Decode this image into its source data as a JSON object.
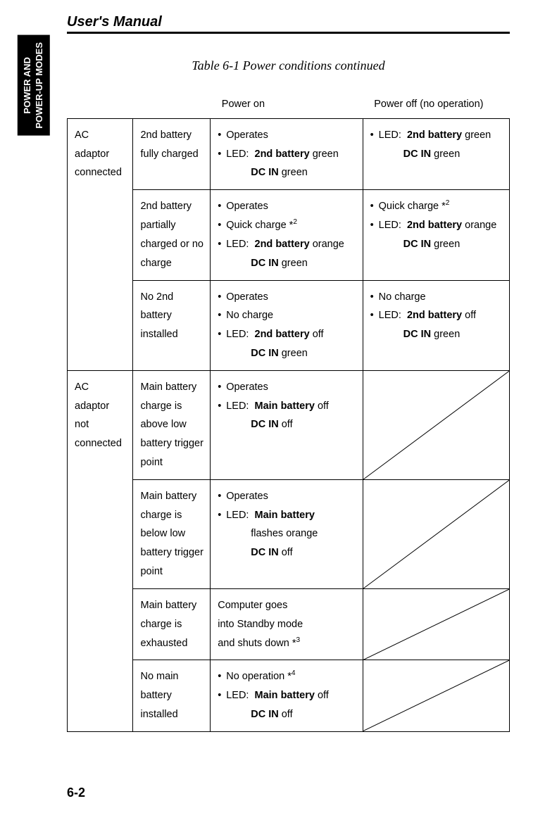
{
  "header": {
    "title": "User's Manual"
  },
  "side_tab": {
    "line1": "POWER AND",
    "line2": "POWER-UP MODES"
  },
  "caption": "Table 6-1 Power conditions continued",
  "col_headers": {
    "c3": "Power on",
    "c4": "Power off (no operation)"
  },
  "groups": [
    {
      "col1": "AC adaptor connected",
      "rows": [
        {
          "col2": "2nd battery fully charged",
          "col3": {
            "lines": [
              {
                "type": "bullet",
                "text": "Operates"
              },
              {
                "type": "led",
                "label": "LED:",
                "bold": "2nd battery",
                "after": " green"
              },
              {
                "type": "indent",
                "bold": "DC IN",
                "after": " green"
              }
            ]
          },
          "col4": {
            "lines": [
              {
                "type": "led",
                "label": "LED:",
                "bold": "2nd battery",
                "after": " green"
              },
              {
                "type": "indent",
                "bold": "DC IN",
                "after": " green"
              }
            ]
          }
        },
        {
          "col2": "2nd battery partially charged or no charge",
          "col3": {
            "lines": [
              {
                "type": "bullet",
                "text": "Operates"
              },
              {
                "type": "bullet",
                "text": "Quick charge *",
                "sup": "2"
              },
              {
                "type": "led",
                "label": "LED:",
                "bold": "2nd battery",
                "after": " orange"
              },
              {
                "type": "indent",
                "bold": "DC IN",
                "after": " green"
              }
            ]
          },
          "col4": {
            "lines": [
              {
                "type": "bullet",
                "text": "Quick charge *",
                "sup": "2"
              },
              {
                "type": "led",
                "label": "LED:",
                "bold": "2nd battery",
                "after": " orange"
              },
              {
                "type": "indent",
                "bold": "DC IN",
                "after": " green"
              }
            ]
          }
        },
        {
          "col2": "No 2nd battery installed",
          "col3": {
            "lines": [
              {
                "type": "bullet",
                "text": "Operates"
              },
              {
                "type": "bullet",
                "text": "No charge"
              },
              {
                "type": "led",
                "label": "LED:",
                "bold": "2nd battery",
                "after": " off"
              },
              {
                "type": "indent",
                "bold": "DC IN",
                "after": " green"
              }
            ]
          },
          "col4": {
            "lines": [
              {
                "type": "bullet",
                "text": "No charge"
              },
              {
                "type": "led",
                "label": "LED:",
                "bold": "2nd battery",
                "after": " off"
              },
              {
                "type": "indent",
                "bold": "DC IN",
                "after": " green"
              }
            ]
          }
        }
      ]
    },
    {
      "col1": "AC adaptor not connected",
      "rows": [
        {
          "col2": "Main battery charge is above low battery trigger point",
          "col3": {
            "lines": [
              {
                "type": "bullet",
                "text": "Operates"
              },
              {
                "type": "led",
                "label": "LED:",
                "bold": "Main battery",
                "after": " off"
              },
              {
                "type": "indent",
                "bold": "DC IN",
                "after": " off"
              }
            ]
          },
          "col4": {
            "diagonal": true
          }
        },
        {
          "col2": "Main battery charge is below low battery trigger point",
          "col3": {
            "lines": [
              {
                "type": "bullet",
                "text": "Operates"
              },
              {
                "type": "led",
                "label": "LED:",
                "bold": "Main battery",
                "after": ""
              },
              {
                "type": "indent_plain",
                "text": "flashes orange"
              },
              {
                "type": "indent",
                "bold": "DC IN",
                "after": " off"
              }
            ]
          },
          "col4": {
            "diagonal": true
          }
        },
        {
          "col2": "Main battery charge is exhausted",
          "col3": {
            "plain": [
              "Computer goes",
              "into Standby mode",
              "and shuts down *"
            ],
            "plain_sup": "3"
          },
          "col4": {
            "diagonal": true
          }
        },
        {
          "col2": "No main battery installed",
          "col3": {
            "lines": [
              {
                "type": "bullet",
                "text": "No operation *",
                "sup": "4"
              },
              {
                "type": "led",
                "label": "LED:",
                "bold": "Main battery",
                "after": " off"
              },
              {
                "type": "indent",
                "bold": "DC IN",
                "after": " off"
              }
            ]
          },
          "col4": {
            "diagonal": true
          }
        }
      ]
    }
  ],
  "page_number": "6-2"
}
